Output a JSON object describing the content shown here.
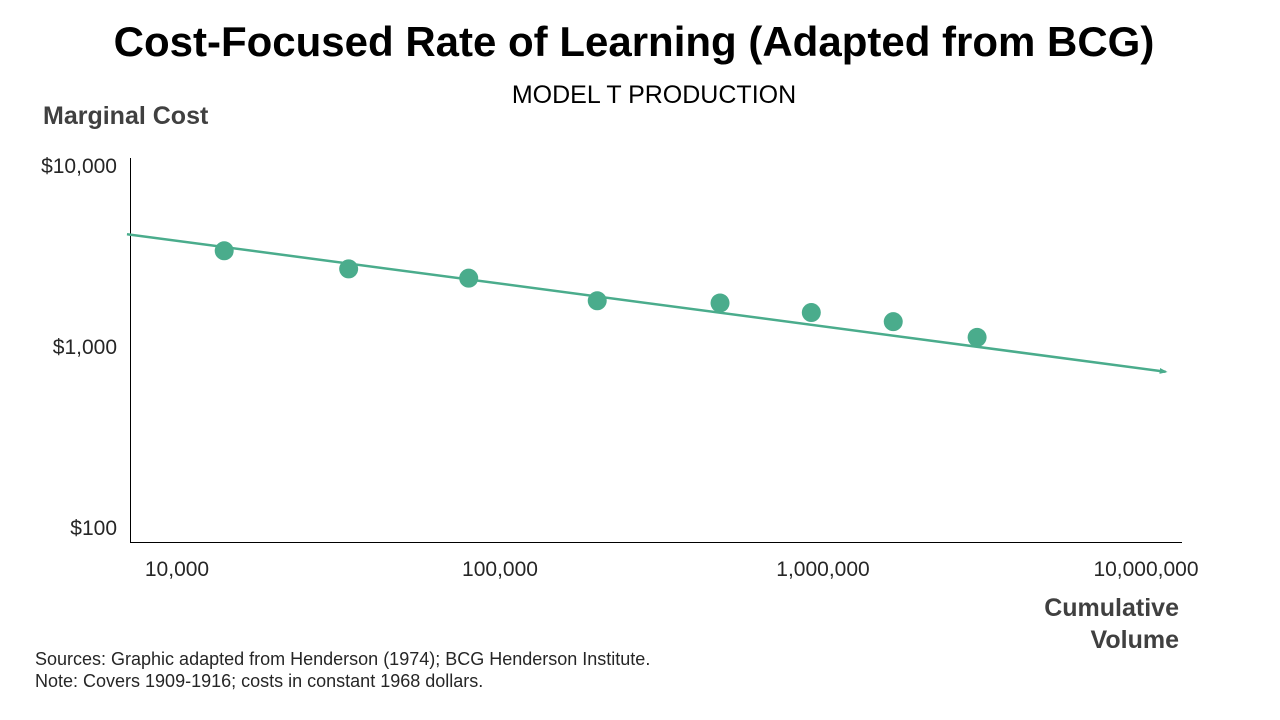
{
  "chart_data": {
    "type": "scatter",
    "title": "Cost-Focused Rate of Learning (Adapted from BCG)",
    "subtitle": "MODEL T PRODUCTION",
    "ylabel": "Marginal Cost",
    "xlabel_lines": [
      "Cumulative",
      "Volume"
    ],
    "x_scale": "log",
    "y_scale": "log",
    "xlim": [
      7000,
      12000000
    ],
    "ylim": [
      90,
      10000
    ],
    "x_ticks": [
      {
        "value": 10000,
        "label": "10,000"
      },
      {
        "value": 100000,
        "label": "100,000"
      },
      {
        "value": 1000000,
        "label": "1,000,000"
      },
      {
        "value": 10000000,
        "label": "10,000,000"
      }
    ],
    "y_ticks": [
      {
        "value": 10000,
        "label": "$10,000"
      },
      {
        "value": 1000,
        "label": "$1,000"
      },
      {
        "value": 100,
        "label": "$100"
      }
    ],
    "series": [
      {
        "points": [
          {
            "x": 14000,
            "y": 3400
          },
          {
            "x": 34000,
            "y": 2700
          },
          {
            "x": 80000,
            "y": 2400
          },
          {
            "x": 200000,
            "y": 1800
          },
          {
            "x": 480000,
            "y": 1750
          },
          {
            "x": 920000,
            "y": 1550
          },
          {
            "x": 1650000,
            "y": 1380
          },
          {
            "x": 3000000,
            "y": 1130
          }
        ]
      }
    ],
    "trendline": {
      "start": {
        "x": 7000,
        "y": 4200
      },
      "end": {
        "x": 12000000,
        "y": 730
      },
      "arrow": true
    },
    "colors": {
      "series": "#4aac8c",
      "axis": "#000000"
    },
    "grid": false,
    "legend": "none"
  },
  "footer": {
    "sources": "Sources: Graphic adapted from Henderson (1974); BCG Henderson Institute.",
    "note": "Note: Covers 1909-1916; costs in constant 1968 dollars."
  }
}
